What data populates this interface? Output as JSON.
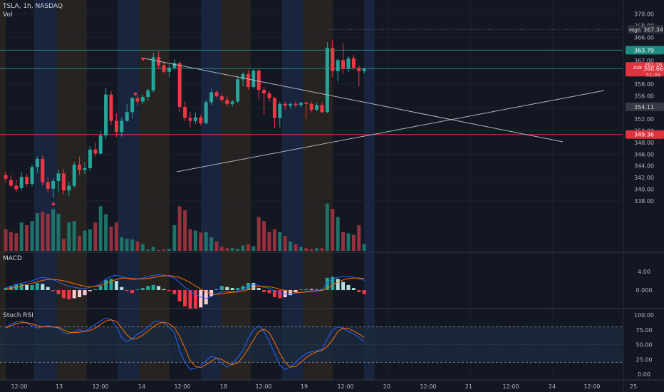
{
  "header": {
    "symbol": "TSLA",
    "interval": "1h",
    "exchange": "NASDAQ",
    "sep": ", ",
    "vol_label": "Vol"
  },
  "panes": {
    "macd_label": "MACD",
    "stoch_label": "Stoch RSI"
  },
  "colors": {
    "background": "#131722",
    "grid": "#1e222d",
    "up": "#26a69a",
    "down": "#f23645",
    "up_vol": "#1e7268",
    "down_vol": "#93323c",
    "text": "#d1d4dc",
    "axis_text": "#b2b5be",
    "premarket_bg": "#1c2a4a",
    "afterhours_bg": "#2e2820",
    "trendline": "#b2b5be",
    "level_teal": "#1f8c80",
    "level_red": "#e0323f",
    "macd_line": "#2962ff",
    "signal_line": "#ff6d00",
    "stoch_k": "#2962ff",
    "stoch_d": "#ff6d00",
    "band_fill": "#1c2a3f"
  },
  "price_axis": {
    "ticks": [
      "370.00",
      "368.00",
      "366.00",
      "364.00",
      "362.00",
      "360.00",
      "358.00",
      "356.00",
      "354.00",
      "352.00",
      "350.00",
      "348.00",
      "346.00",
      "344.00",
      "342.00",
      "340.00",
      "338.00"
    ]
  },
  "labels": {
    "high": {
      "text": "High",
      "value": "367.34"
    },
    "resist": "363.79",
    "last": "360.66",
    "ask_text": "Ask",
    "ask_under": "361.26",
    "ask_under2": "51:35",
    "mid": "354.11",
    "support": "349.36"
  },
  "macd_axis": [
    "4.00",
    "0.000"
  ],
  "stoch_axis": [
    "100.00",
    "75.00",
    "50.00",
    "25.00",
    "0.00"
  ],
  "time_axis": [
    "12:00",
    "13",
    "12:00",
    "14",
    "12:00",
    "18",
    "12:00",
    "19",
    "12:00",
    "20",
    "12:00",
    "21",
    "12:00",
    "24",
    "12:00",
    "25"
  ],
  "chart_data": {
    "type": "candlestick",
    "symbol": "TSLA",
    "interval": "1h",
    "exchange": "NASDAQ",
    "price_range": [
      337,
      371
    ],
    "candles": [
      {
        "o": 342.4,
        "h": 343.0,
        "l": 341.2,
        "c": 341.8
      },
      {
        "o": 341.6,
        "h": 342.4,
        "l": 340.3,
        "c": 340.6
      },
      {
        "o": 340.6,
        "h": 341.7,
        "l": 339.4,
        "c": 340.0
      },
      {
        "o": 340.2,
        "h": 342.9,
        "l": 339.8,
        "c": 342.1
      },
      {
        "o": 342.1,
        "h": 342.6,
        "l": 340.4,
        "c": 340.9
      },
      {
        "o": 340.9,
        "h": 344.2,
        "l": 340.5,
        "c": 343.8
      },
      {
        "o": 343.8,
        "h": 345.6,
        "l": 342.8,
        "c": 345.2
      },
      {
        "o": 345.2,
        "h": 345.8,
        "l": 340.6,
        "c": 341.2
      },
      {
        "o": 341.2,
        "h": 342.1,
        "l": 339.4,
        "c": 340.1
      },
      {
        "o": 340.1,
        "h": 341.9,
        "l": 338.5,
        "c": 341.4
      },
      {
        "o": 341.4,
        "h": 343.4,
        "l": 339.6,
        "c": 342.7
      },
      {
        "o": 342.7,
        "h": 343.4,
        "l": 339.2,
        "c": 339.8
      },
      {
        "o": 339.8,
        "h": 341.3,
        "l": 338.8,
        "c": 340.6
      },
      {
        "o": 340.6,
        "h": 344.7,
        "l": 340.2,
        "c": 344.2
      },
      {
        "o": 344.2,
        "h": 345.6,
        "l": 342.4,
        "c": 343.3
      },
      {
        "o": 343.3,
        "h": 344.7,
        "l": 342.6,
        "c": 343.6
      },
      {
        "o": 343.6,
        "h": 347.4,
        "l": 343.1,
        "c": 346.8
      },
      {
        "o": 346.8,
        "h": 348.0,
        "l": 345.6,
        "c": 346.1
      },
      {
        "o": 346.1,
        "h": 349.9,
        "l": 345.9,
        "c": 349.2
      },
      {
        "o": 349.2,
        "h": 357.3,
        "l": 348.6,
        "c": 356.2
      },
      {
        "o": 356.2,
        "h": 356.8,
        "l": 351.0,
        "c": 351.7
      },
      {
        "o": 351.7,
        "h": 353.0,
        "l": 348.9,
        "c": 349.8
      },
      {
        "o": 349.8,
        "h": 352.3,
        "l": 349.0,
        "c": 351.7
      },
      {
        "o": 351.7,
        "h": 354.6,
        "l": 351.5,
        "c": 353.2
      },
      {
        "o": 353.2,
        "h": 355.8,
        "l": 352.2,
        "c": 355.6
      },
      {
        "o": 355.6,
        "h": 356.2,
        "l": 354.4,
        "c": 355.0
      },
      {
        "o": 355.0,
        "h": 356.2,
        "l": 354.6,
        "c": 355.8
      },
      {
        "o": 355.8,
        "h": 357.2,
        "l": 355.1,
        "c": 356.9
      },
      {
        "o": 356.9,
        "h": 363.4,
        "l": 356.6,
        "c": 362.6
      },
      {
        "o": 362.6,
        "h": 363.6,
        "l": 360.6,
        "c": 361.2
      },
      {
        "o": 361.2,
        "h": 361.8,
        "l": 359.8,
        "c": 360.1
      },
      {
        "o": 360.1,
        "h": 361.4,
        "l": 359.2,
        "c": 360.8
      },
      {
        "o": 360.8,
        "h": 362.2,
        "l": 360.4,
        "c": 361.6
      },
      {
        "o": 361.6,
        "h": 361.8,
        "l": 353.2,
        "c": 354.1
      },
      {
        "o": 354.1,
        "h": 355.0,
        "l": 351.6,
        "c": 352.2
      },
      {
        "o": 352.2,
        "h": 353.2,
        "l": 350.6,
        "c": 351.7
      },
      {
        "o": 351.7,
        "h": 353.1,
        "l": 351.2,
        "c": 352.3
      },
      {
        "o": 352.3,
        "h": 352.8,
        "l": 350.9,
        "c": 351.3
      },
      {
        "o": 351.3,
        "h": 355.3,
        "l": 351.1,
        "c": 354.9
      },
      {
        "o": 354.9,
        "h": 357.2,
        "l": 354.4,
        "c": 356.6
      },
      {
        "o": 356.6,
        "h": 356.9,
        "l": 355.6,
        "c": 355.9
      },
      {
        "o": 355.9,
        "h": 356.3,
        "l": 354.9,
        "c": 355.3
      },
      {
        "o": 355.3,
        "h": 355.9,
        "l": 354.2,
        "c": 354.6
      },
      {
        "o": 354.6,
        "h": 355.3,
        "l": 354.1,
        "c": 355.0
      },
      {
        "o": 355.0,
        "h": 359.4,
        "l": 354.8,
        "c": 358.8
      },
      {
        "o": 358.8,
        "h": 360.0,
        "l": 357.6,
        "c": 359.7
      },
      {
        "o": 359.7,
        "h": 360.4,
        "l": 357.0,
        "c": 357.5
      },
      {
        "o": 357.5,
        "h": 360.6,
        "l": 357.2,
        "c": 360.3
      },
      {
        "o": 360.3,
        "h": 360.6,
        "l": 355.4,
        "c": 357.0
      },
      {
        "o": 357.0,
        "h": 357.5,
        "l": 352.8,
        "c": 356.4
      },
      {
        "o": 356.4,
        "h": 356.8,
        "l": 355.0,
        "c": 355.6
      },
      {
        "o": 355.6,
        "h": 355.8,
        "l": 350.4,
        "c": 352.2
      },
      {
        "o": 352.2,
        "h": 355.0,
        "l": 350.6,
        "c": 354.6
      },
      {
        "o": 354.6,
        "h": 355.0,
        "l": 353.6,
        "c": 354.3
      },
      {
        "o": 354.3,
        "h": 354.8,
        "l": 353.8,
        "c": 354.6
      },
      {
        "o": 354.6,
        "h": 355.0,
        "l": 354.0,
        "c": 354.4
      },
      {
        "o": 354.4,
        "h": 354.9,
        "l": 354.0,
        "c": 354.8
      },
      {
        "o": 354.8,
        "h": 355.0,
        "l": 352.0,
        "c": 354.6
      },
      {
        "o": 354.6,
        "h": 355.0,
        "l": 353.2,
        "c": 353.6
      },
      {
        "o": 353.6,
        "h": 354.8,
        "l": 353.4,
        "c": 354.4
      },
      {
        "o": 354.4,
        "h": 354.9,
        "l": 353.0,
        "c": 353.2
      },
      {
        "o": 353.2,
        "h": 365.2,
        "l": 353.0,
        "c": 364.2
      },
      {
        "o": 364.2,
        "h": 365.6,
        "l": 359.2,
        "c": 360.2
      },
      {
        "o": 360.2,
        "h": 362.4,
        "l": 358.4,
        "c": 362.1
      },
      {
        "o": 362.1,
        "h": 365.0,
        "l": 359.8,
        "c": 360.6
      },
      {
        "o": 360.6,
        "h": 362.8,
        "l": 360.0,
        "c": 362.4
      },
      {
        "o": 362.4,
        "h": 363.0,
        "l": 360.4,
        "c": 360.8
      },
      {
        "o": 360.8,
        "h": 361.2,
        "l": 357.6,
        "c": 360.2
      },
      {
        "o": 360.2,
        "h": 360.8,
        "l": 359.8,
        "c": 360.6
      }
    ],
    "volume": [
      0.32,
      0.28,
      0.26,
      0.42,
      0.38,
      0.44,
      0.56,
      0.58,
      0.55,
      0.62,
      0.55,
      0.18,
      0.42,
      0.44,
      0.22,
      0.3,
      0.32,
      0.42,
      0.66,
      0.54,
      0.36,
      0.42,
      0.2,
      0.18,
      0.17,
      0.14,
      0.1,
      0.02,
      0.06,
      0.01,
      0.02,
      0.03,
      0.38,
      0.66,
      0.6,
      0.32,
      0.3,
      0.27,
      0.28,
      0.2,
      0.14,
      0.06,
      0.04,
      0.04,
      0.03,
      0.08,
      0.1,
      0.07,
      0.5,
      0.44,
      0.28,
      0.32,
      0.28,
      0.22,
      0.14,
      0.1,
      0.06,
      0.04,
      0.03,
      0.04,
      0.04,
      0.7,
      0.62,
      0.5,
      0.28,
      0.26,
      0.24,
      0.38,
      0.1
    ],
    "macd": [
      0.5,
      0.8,
      1.2,
      1.5,
      1.7,
      2.0,
      2.5,
      2.7,
      2.6,
      2.2,
      1.8,
      1.2,
      0.8,
      0.6,
      0.4,
      0.3,
      0.6,
      0.9,
      1.4,
      2.4,
      3.0,
      3.2,
      2.9,
      2.5,
      2.2,
      2.4,
      2.6,
      2.9,
      3.2,
      3.3,
      3.2,
      3.0,
      2.6,
      1.6,
      0.6,
      -0.2,
      -0.9,
      -1.5,
      -1.8,
      -1.4,
      -0.8,
      -0.4,
      -0.3,
      -0.3,
      -0.2,
      0.2,
      0.8,
      1.2,
      1.0,
      0.6,
      0.4,
      -0.2,
      -0.6,
      -0.8,
      -0.8,
      -0.7,
      -0.5,
      -0.3,
      -0.2,
      -0.1,
      0.0,
      1.6,
      2.4,
      2.8,
      3.0,
      3.0,
      2.8,
      2.4,
      2.1
    ],
    "signal": [
      0.3,
      0.4,
      0.6,
      0.9,
      1.2,
      1.5,
      1.8,
      2.1,
      2.3,
      2.3,
      2.2,
      2.0,
      1.7,
      1.4,
      1.1,
      0.8,
      0.7,
      0.8,
      1.0,
      1.4,
      1.9,
      2.3,
      2.6,
      2.6,
      2.5,
      2.4,
      2.4,
      2.5,
      2.7,
      2.9,
      3.1,
      3.1,
      3.0,
      2.7,
      2.2,
      1.6,
      0.9,
      0.2,
      -0.4,
      -0.8,
      -0.9,
      -0.8,
      -0.6,
      -0.5,
      -0.4,
      -0.2,
      0.1,
      0.5,
      0.8,
      0.8,
      0.7,
      0.5,
      0.2,
      -0.1,
      -0.3,
      -0.5,
      -0.5,
      -0.4,
      -0.3,
      -0.2,
      -0.1,
      0.4,
      1.1,
      1.7,
      2.2,
      2.5,
      2.6,
      2.6,
      2.5
    ],
    "stoch_k": [
      80,
      85,
      88,
      90,
      86,
      82,
      78,
      80,
      82,
      80,
      78,
      70,
      68,
      72,
      75,
      72,
      78,
      84,
      90,
      95,
      92,
      80,
      62,
      55,
      60,
      68,
      72,
      80,
      88,
      90,
      86,
      80,
      70,
      40,
      20,
      8,
      10,
      15,
      22,
      30,
      28,
      18,
      12,
      18,
      28,
      40,
      60,
      75,
      82,
      72,
      55,
      35,
      15,
      8,
      12,
      20,
      28,
      35,
      38,
      40,
      42,
      60,
      75,
      80,
      78,
      72,
      68,
      62,
      55
    ],
    "stoch_d": [
      78,
      82,
      85,
      87,
      87,
      85,
      82,
      80,
      80,
      80,
      79,
      75,
      71,
      70,
      71,
      72,
      74,
      78,
      84,
      90,
      92,
      89,
      78,
      66,
      59,
      61,
      66,
      73,
      80,
      86,
      88,
      85,
      79,
      64,
      44,
      23,
      13,
      11,
      16,
      22,
      27,
      25,
      19,
      16,
      19,
      29,
      43,
      58,
      72,
      76,
      70,
      54,
      35,
      20,
      12,
      13,
      20,
      28,
      34,
      38,
      40,
      47,
      58,
      72,
      78,
      77,
      73,
      68,
      62
    ]
  }
}
